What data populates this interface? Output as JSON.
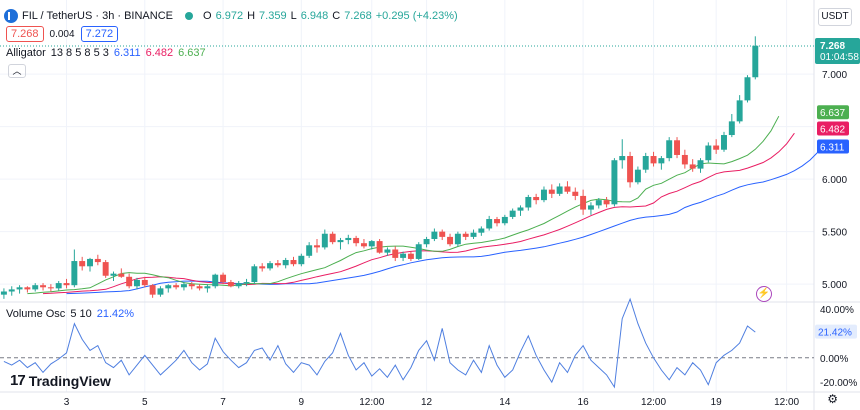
{
  "header": {
    "symbol": "FIL / TetherUS · 3h · BINANCE",
    "o_label": "O",
    "o": "6.972",
    "h_label": "H",
    "h": "7.359",
    "l_label": "L",
    "l": "6.948",
    "c_label": "C",
    "c": "7.268",
    "change": "+0.295 (+4.23%)"
  },
  "price_boxes": {
    "bid": "7.268",
    "spread": "0.004",
    "ask": "7.272"
  },
  "indicator": {
    "name": "Alligator",
    "params": "13 8 5 8 5 3",
    "v1": "6.311",
    "v2": "6.482",
    "v3": "6.637"
  },
  "volume_osc": {
    "name": "Volume Osc",
    "params": "5 10",
    "value": "21.42%"
  },
  "currency_button": "USDT",
  "logo_text": "TradingView",
  "collapse_icon": "chevron-up-icon",
  "colors": {
    "up": "#26a69a",
    "down": "#ef5350",
    "jaw": "#2962ff",
    "teeth": "#e91e63",
    "lips": "#4caf50",
    "osc": "#4f7fe0"
  },
  "chart_data": [
    {
      "type": "candlestick",
      "title": "FIL / TetherUS · 3h · BINANCE",
      "ylim": [
        4.83,
        7.42
      ],
      "y_ticks": [
        5.0,
        5.5,
        6.0,
        6.5,
        7.0
      ],
      "x_ticks": [
        "3",
        "5",
        "7",
        "9",
        "12:00",
        "12",
        "14",
        "16",
        "12:00",
        "19",
        "12:00"
      ],
      "x_tick_index": [
        8,
        18,
        28,
        38,
        47,
        54,
        64,
        74,
        83,
        91,
        100
      ],
      "n_slots": 104,
      "first_index": 0,
      "current_price": {
        "value": 7.268,
        "label": "7.268",
        "countdown": "01:04:58"
      },
      "candles": [
        [
          4.9,
          4.96,
          4.86,
          4.93
        ],
        [
          4.93,
          4.98,
          4.89,
          4.95
        ],
        [
          4.95,
          4.99,
          4.91,
          4.97
        ],
        [
          4.97,
          4.98,
          4.92,
          4.95
        ],
        [
          4.95,
          5.01,
          4.93,
          4.99
        ],
        [
          4.99,
          5.01,
          4.94,
          4.97
        ],
        [
          4.97,
          5.0,
          4.93,
          4.96
        ],
        [
          4.96,
          5.03,
          4.94,
          5.01
        ],
        [
          5.01,
          5.05,
          4.96,
          4.99
        ],
        [
          4.99,
          5.33,
          4.97,
          5.22
        ],
        [
          5.22,
          5.26,
          5.13,
          5.17
        ],
        [
          5.17,
          5.25,
          5.12,
          5.24
        ],
        [
          5.24,
          5.28,
          5.18,
          5.21
        ],
        [
          5.21,
          5.23,
          5.06,
          5.08
        ],
        [
          5.08,
          5.12,
          5.03,
          5.1
        ],
        [
          5.1,
          5.15,
          5.06,
          5.07
        ],
        [
          5.07,
          5.1,
          4.96,
          4.98
        ],
        [
          4.98,
          5.06,
          4.95,
          5.04
        ],
        [
          5.04,
          5.07,
          4.97,
          4.99
        ],
        [
          4.99,
          5.0,
          4.87,
          4.9
        ],
        [
          4.9,
          4.98,
          4.88,
          4.96
        ],
        [
          4.96,
          5.0,
          4.92,
          4.99
        ],
        [
          4.99,
          5.01,
          4.95,
          4.97
        ],
        [
          4.97,
          5.02,
          4.94,
          5.0
        ],
        [
          5.0,
          5.02,
          4.95,
          4.98
        ],
        [
          4.98,
          5.0,
          4.94,
          4.96
        ],
        [
          4.96,
          5.0,
          4.92,
          4.98
        ],
        [
          4.98,
          5.1,
          4.96,
          5.09
        ],
        [
          5.09,
          5.11,
          5.0,
          5.02
        ],
        [
          5.02,
          5.04,
          4.97,
          4.98
        ],
        [
          4.98,
          5.03,
          4.96,
          5.01
        ],
        [
          5.01,
          5.05,
          4.98,
          5.02
        ],
        [
          5.02,
          5.19,
          5.0,
          5.17
        ],
        [
          5.17,
          5.2,
          5.12,
          5.15
        ],
        [
          5.15,
          5.22,
          5.13,
          5.2
        ],
        [
          5.2,
          5.23,
          5.16,
          5.18
        ],
        [
          5.18,
          5.25,
          5.15,
          5.23
        ],
        [
          5.23,
          5.26,
          5.17,
          5.19
        ],
        [
          5.19,
          5.29,
          5.17,
          5.27
        ],
        [
          5.27,
          5.4,
          5.25,
          5.37
        ],
        [
          5.37,
          5.43,
          5.3,
          5.35
        ],
        [
          5.35,
          5.52,
          5.33,
          5.48
        ],
        [
          5.48,
          5.5,
          5.38,
          5.4
        ],
        [
          5.4,
          5.44,
          5.33,
          5.42
        ],
        [
          5.42,
          5.47,
          5.38,
          5.44
        ],
        [
          5.44,
          5.46,
          5.36,
          5.39
        ],
        [
          5.39,
          5.43,
          5.34,
          5.36
        ],
        [
          5.36,
          5.42,
          5.33,
          5.41
        ],
        [
          5.41,
          5.43,
          5.29,
          5.3
        ],
        [
          5.3,
          5.35,
          5.27,
          5.33
        ],
        [
          5.33,
          5.36,
          5.22,
          5.25
        ],
        [
          5.25,
          5.31,
          5.22,
          5.29
        ],
        [
          5.29,
          5.31,
          5.22,
          5.24
        ],
        [
          5.24,
          5.4,
          5.23,
          5.38
        ],
        [
          5.38,
          5.45,
          5.35,
          5.43
        ],
        [
          5.43,
          5.53,
          5.41,
          5.5
        ],
        [
          5.5,
          5.52,
          5.42,
          5.45
        ],
        [
          5.45,
          5.48,
          5.36,
          5.38
        ],
        [
          5.38,
          5.5,
          5.36,
          5.48
        ],
        [
          5.48,
          5.5,
          5.42,
          5.45
        ],
        [
          5.45,
          5.52,
          5.43,
          5.49
        ],
        [
          5.49,
          5.55,
          5.46,
          5.53
        ],
        [
          5.53,
          5.65,
          5.51,
          5.62
        ],
        [
          5.62,
          5.64,
          5.55,
          5.58
        ],
        [
          5.58,
          5.66,
          5.56,
          5.64
        ],
        [
          5.64,
          5.72,
          5.62,
          5.7
        ],
        [
          5.7,
          5.75,
          5.65,
          5.73
        ],
        [
          5.73,
          5.85,
          5.7,
          5.83
        ],
        [
          5.83,
          5.86,
          5.76,
          5.8
        ],
        [
          5.8,
          5.93,
          5.78,
          5.9
        ],
        [
          5.9,
          5.95,
          5.82,
          5.86
        ],
        [
          5.86,
          5.96,
          5.84,
          5.93
        ],
        [
          5.93,
          5.98,
          5.86,
          5.88
        ],
        [
          5.88,
          5.92,
          5.8,
          5.84
        ],
        [
          5.84,
          5.9,
          5.66,
          5.71
        ],
        [
          5.71,
          5.78,
          5.66,
          5.75
        ],
        [
          5.75,
          5.82,
          5.72,
          5.8
        ],
        [
          5.8,
          5.83,
          5.73,
          5.76
        ],
        [
          5.76,
          6.2,
          5.74,
          6.18
        ],
        [
          6.18,
          6.38,
          6.1,
          6.22
        ],
        [
          6.22,
          6.26,
          5.92,
          5.97
        ],
        [
          5.97,
          6.12,
          5.95,
          6.09
        ],
        [
          6.09,
          6.25,
          6.06,
          6.22
        ],
        [
          6.22,
          6.26,
          6.12,
          6.15
        ],
        [
          6.15,
          6.22,
          6.09,
          6.2
        ],
        [
          6.2,
          6.4,
          6.17,
          6.37
        ],
        [
          6.37,
          6.4,
          6.2,
          6.23
        ],
        [
          6.23,
          6.28,
          6.1,
          6.14
        ],
        [
          6.14,
          6.19,
          6.07,
          6.1
        ],
        [
          6.1,
          6.2,
          6.06,
          6.18
        ],
        [
          6.18,
          6.35,
          6.16,
          6.32
        ],
        [
          6.32,
          6.38,
          6.24,
          6.28
        ],
        [
          6.28,
          6.45,
          6.26,
          6.42
        ],
        [
          6.42,
          6.62,
          6.4,
          6.55
        ],
        [
          6.55,
          6.8,
          6.53,
          6.75
        ],
        [
          6.75,
          6.99,
          6.73,
          6.97
        ],
        [
          6.97,
          7.36,
          6.95,
          7.27
        ]
      ],
      "alligator": {
        "jaw_label": "6.311",
        "teeth_label": "6.482",
        "lips_label": "6.637",
        "jaw_shift": 8,
        "teeth_shift": 5,
        "lips_shift": 3
      },
      "legend": [
        "Alligator 13 8 5 8 5 3"
      ]
    },
    {
      "type": "line",
      "title": "Volume Osc 5 10",
      "ylim": [
        -28,
        44
      ],
      "y_ticks": [
        40,
        0,
        -20
      ],
      "y_tick_labels": [
        "40.00%",
        "0.00%",
        "-20.00%"
      ],
      "current_value": {
        "value": 21.42,
        "label": "21.42%"
      },
      "values": [
        -3,
        -6,
        -2,
        -8,
        -4,
        -12,
        -5,
        -1,
        4,
        28,
        15,
        6,
        10,
        -4,
        -8,
        -2,
        -14,
        -6,
        2,
        -6,
        -14,
        -8,
        -2,
        6,
        -4,
        -10,
        -5,
        16,
        5,
        -2,
        -8,
        -4,
        6,
        8,
        -2,
        10,
        -5,
        -12,
        -4,
        -6,
        -14,
        -3,
        4,
        20,
        2,
        -10,
        -4,
        -15,
        -9,
        -16,
        -6,
        -18,
        -8,
        6,
        14,
        -2,
        24,
        -4,
        -10,
        -14,
        -2,
        -12,
        10,
        -6,
        -16,
        -10,
        5,
        18,
        2,
        -10,
        -20,
        -4,
        -12,
        2,
        10,
        -2,
        -8,
        -14,
        -24,
        32,
        48,
        28,
        12,
        0,
        -10,
        -18,
        -8,
        -14,
        -4,
        -10,
        -22,
        -4,
        2,
        6,
        12,
        26,
        21
      ]
    }
  ]
}
